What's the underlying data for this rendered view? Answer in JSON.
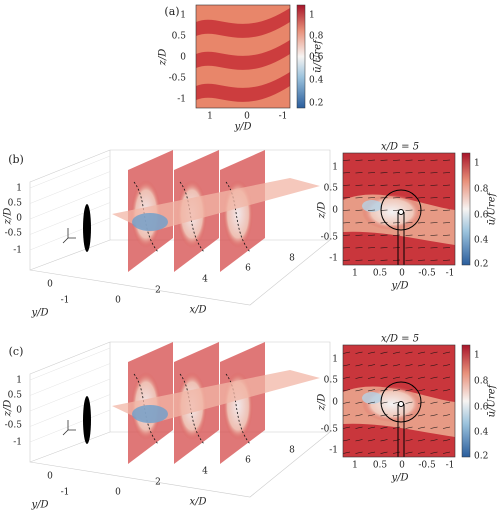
{
  "panel_a": {
    "label": "(a)",
    "xlabel": "y/D",
    "ylabel": "z/D",
    "colorbar_label": "ū/Uref",
    "xticks": [
      "1",
      "0",
      "-1"
    ],
    "yticks": [
      "1",
      "0.5",
      "0",
      "-0.5",
      "-1"
    ],
    "colorbar_ticks": [
      "1",
      "0.8",
      "0.6",
      "0.4",
      "0.2"
    ]
  },
  "panel_b": {
    "label": "(b)",
    "view3d": {
      "xlabel": "x/D",
      "ylabel": "y/D",
      "zlabel": "z/D",
      "xticks": [
        "0",
        "2",
        "4",
        "6",
        "8"
      ],
      "yticks": [
        "0",
        "-1"
      ],
      "zticks": [
        "1",
        "0.5",
        "0",
        "-0.5",
        "-1"
      ]
    },
    "slice": {
      "title": "x/D = 5",
      "xlabel": "y/D",
      "ylabel": "z/D",
      "colorbar_label": "ū/Uref",
      "xticks": [
        "1",
        "0.5",
        "0",
        "-0.5",
        "-1"
      ],
      "yticks": [
        "1",
        "0.5",
        "0",
        "-0.5",
        "-1"
      ],
      "colorbar_ticks": [
        "1",
        "0.8",
        "0.6",
        "0.4",
        "0.2"
      ]
    }
  },
  "panel_c": {
    "label": "(c)",
    "view3d": {
      "xlabel": "x/D",
      "ylabel": "y/D",
      "zlabel": "z/D",
      "xticks": [
        "0",
        "2",
        "4",
        "6",
        "8"
      ],
      "yticks": [
        "0",
        "-1"
      ],
      "zticks": [
        "1",
        "0.5",
        "0",
        "-0.5",
        "-1"
      ]
    },
    "slice": {
      "title": "x/D = 5",
      "xlabel": "y/D",
      "ylabel": "z/D",
      "colorbar_label": "ū/Uref",
      "xticks": [
        "1",
        "0.5",
        "0",
        "-0.5",
        "-1"
      ],
      "yticks": [
        "1",
        "0.5",
        "0",
        "-0.5",
        "-1"
      ],
      "colorbar_ticks": [
        "1",
        "0.8",
        "0.6",
        "0.4",
        "0.2"
      ]
    }
  }
}
